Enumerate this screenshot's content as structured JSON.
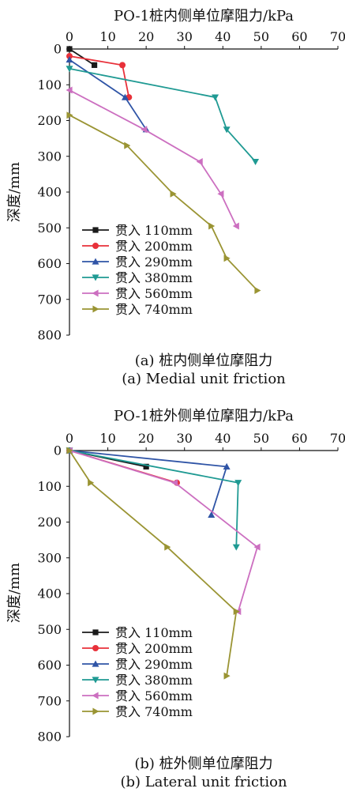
{
  "series_styles": [
    {
      "name": "贯入 110mm",
      "color": "#1a1a1a",
      "marker": "square"
    },
    {
      "name": "贯入 200mm",
      "color": "#e8313a",
      "marker": "circle"
    },
    {
      "name": "贯入 290mm",
      "color": "#2f54a6",
      "marker": "triangle-up"
    },
    {
      "name": "贯入 380mm",
      "color": "#1f9a93",
      "marker": "triangle-down"
    },
    {
      "name": "贯入 560mm",
      "color": "#cc6fc0",
      "marker": "triangle-left"
    },
    {
      "name": "贯入 740mm",
      "color": "#9a9433",
      "marker": "triangle-right"
    }
  ],
  "chart_data": [
    {
      "type": "line",
      "title": "PO-1桩内侧单位摩阻力/kPa",
      "ylabel": "深度/mm",
      "caption_cn": "(a) 桩内侧单位摩阻力",
      "caption_en": "(a) Medial unit friction",
      "xlim": [
        0,
        70
      ],
      "ylim": [
        0,
        800
      ],
      "x_ticks": [
        0,
        10,
        20,
        30,
        40,
        50,
        60,
        70
      ],
      "y_ticks": [
        0,
        100,
        200,
        300,
        400,
        500,
        600,
        700,
        800
      ],
      "x_axis_position": "top",
      "y_inverted": true,
      "legend_position": "bottom-left",
      "series": [
        {
          "name": "贯入 110mm",
          "points": [
            [
              0,
              0
            ],
            [
              6.5,
              45
            ]
          ]
        },
        {
          "name": "贯入 200mm",
          "points": [
            [
              0,
              20
            ],
            [
              13.8,
              45
            ],
            [
              15.5,
              135
            ]
          ]
        },
        {
          "name": "贯入 290mm",
          "points": [
            [
              0,
              30
            ],
            [
              14.5,
              135
            ],
            [
              20,
              225
            ]
          ]
        },
        {
          "name": "贯入 380mm",
          "points": [
            [
              0,
              55
            ],
            [
              38,
              135
            ],
            [
              41,
              225
            ],
            [
              48.5,
              315
            ]
          ]
        },
        {
          "name": "贯入 560mm",
          "points": [
            [
              0,
              115
            ],
            [
              19.5,
              225
            ],
            [
              34,
              315
            ],
            [
              39.5,
              405
            ],
            [
              43.5,
              495
            ]
          ]
        },
        {
          "name": "贯入 740mm",
          "points": [
            [
              0,
              185
            ],
            [
              15,
              270
            ],
            [
              27,
              405
            ],
            [
              37,
              495
            ],
            [
              41,
              585
            ],
            [
              49,
              675
            ]
          ]
        }
      ]
    },
    {
      "type": "line",
      "title": "PO-1桩外侧单位摩阻力/kPa",
      "ylabel": "深度/mm",
      "caption_cn": "(b) 桩外侧单位摩阻力",
      "caption_en": "(b) Lateral unit friction",
      "xlim": [
        0,
        70
      ],
      "ylim": [
        0,
        800
      ],
      "x_ticks": [
        0,
        10,
        20,
        30,
        40,
        50,
        60,
        70
      ],
      "y_ticks": [
        0,
        100,
        200,
        300,
        400,
        500,
        600,
        700,
        800
      ],
      "x_axis_position": "top",
      "y_inverted": true,
      "legend_position": "bottom-left",
      "series": [
        {
          "name": "贯入 110mm",
          "points": [
            [
              0,
              0
            ],
            [
              20,
              45
            ]
          ]
        },
        {
          "name": "贯入 200mm",
          "points": [
            [
              0,
              0
            ],
            [
              28,
              90
            ]
          ]
        },
        {
          "name": "贯入 290mm",
          "points": [
            [
              0,
              0
            ],
            [
              41,
              45
            ],
            [
              37,
              180
            ]
          ]
        },
        {
          "name": "贯入 380mm",
          "points": [
            [
              0,
              0
            ],
            [
              44,
              90
            ],
            [
              43.5,
              270
            ]
          ]
        },
        {
          "name": "贯入 560mm",
          "points": [
            [
              0,
              0
            ],
            [
              27.5,
              90
            ],
            [
              49,
              270
            ],
            [
              44,
              450
            ]
          ]
        },
        {
          "name": "贯入 740mm",
          "points": [
            [
              0,
              0
            ],
            [
              5.5,
              90
            ],
            [
              25.5,
              270
            ],
            [
              43.5,
              450
            ],
            [
              41,
              630
            ]
          ]
        }
      ]
    }
  ]
}
